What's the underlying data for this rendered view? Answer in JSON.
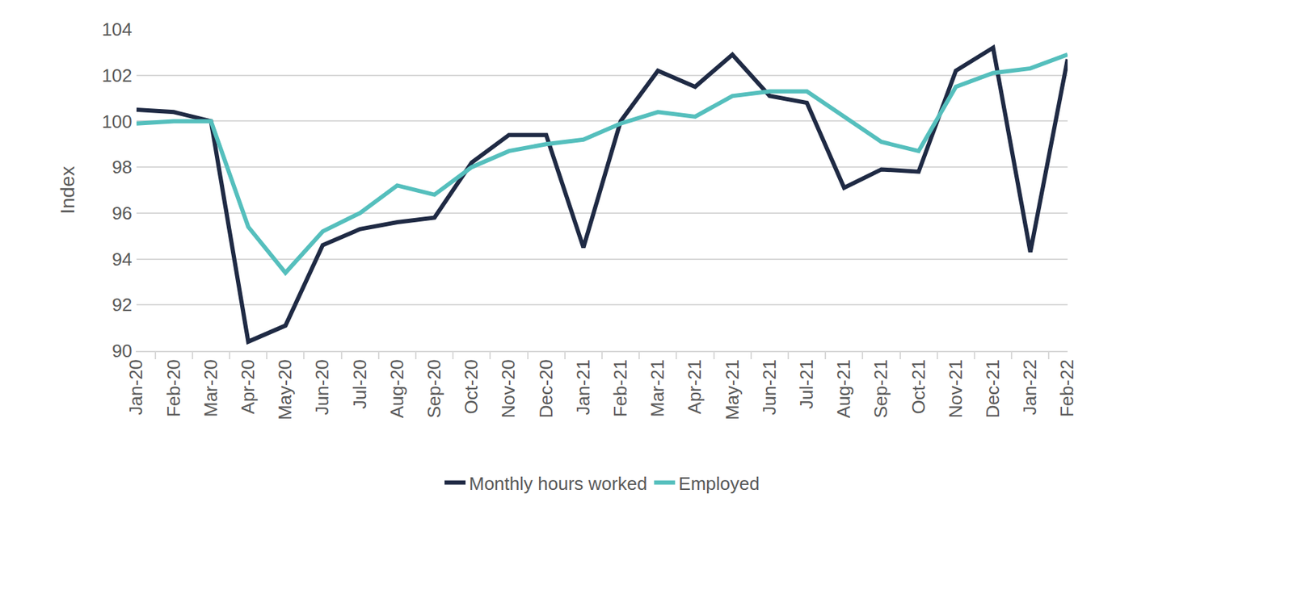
{
  "chart_data": {
    "type": "line",
    "y_label": "Index",
    "categories": [
      "Jan-20",
      "Feb-20",
      "Mar-20",
      "Apr-20",
      "May-20",
      "Jun-20",
      "Jul-20",
      "Aug-20",
      "Sep-20",
      "Oct-20",
      "Nov-20",
      "Dec-20",
      "Jan-21",
      "Feb-21",
      "Mar-21",
      "Apr-21",
      "May-21",
      "Jun-21",
      "Jul-21",
      "Aug-21",
      "Sep-21",
      "Oct-21",
      "Nov-21",
      "Dec-21",
      "Jan-22",
      "Feb-22"
    ],
    "series": [
      {
        "name": "Monthly hours worked",
        "color": "#1f2a44",
        "values": [
          100.5,
          100.4,
          100.0,
          90.4,
          91.1,
          94.6,
          95.3,
          95.6,
          95.8,
          98.2,
          99.4,
          99.4,
          94.5,
          100.0,
          102.2,
          101.5,
          102.9,
          101.1,
          100.8,
          97.1,
          97.9,
          97.8,
          102.2,
          103.2,
          94.3,
          102.7
        ]
      },
      {
        "name": "Employed",
        "color": "#55bfbd",
        "values": [
          99.9,
          100.0,
          100.0,
          95.4,
          93.4,
          95.2,
          96.0,
          97.2,
          96.8,
          98.0,
          98.7,
          99.0,
          99.2,
          99.9,
          100.4,
          100.2,
          101.1,
          101.3,
          101.3,
          100.2,
          99.1,
          98.7,
          101.5,
          102.1,
          102.3,
          102.9
        ]
      }
    ],
    "ylim": [
      90,
      104
    ],
    "yticks": [
      90,
      92,
      94,
      96,
      98,
      100,
      102,
      104
    ],
    "grid": true,
    "legend": "bottom"
  }
}
